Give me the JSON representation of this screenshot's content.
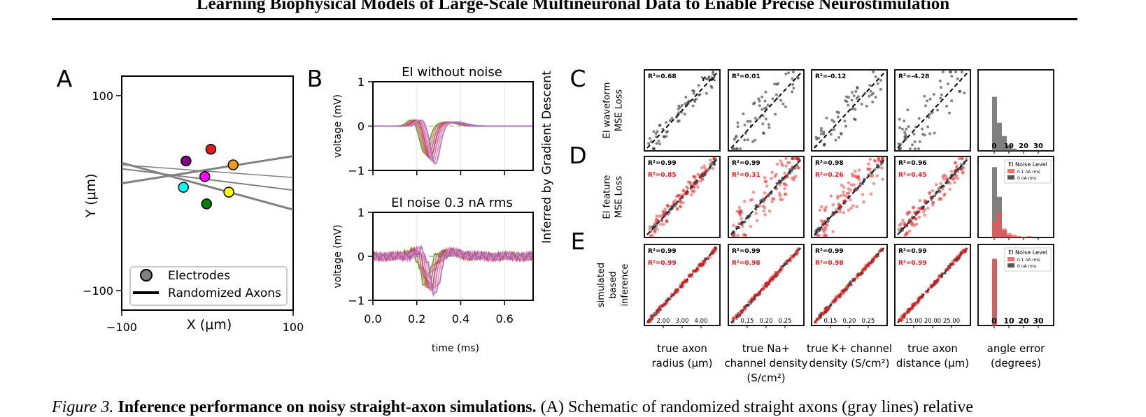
{
  "title": "Learning Biophysical Models of Large-Scale Multineuronal Data to Enable Precise Neurostimulation",
  "caption": {
    "label": "Figure 3.",
    "bold": "Inference performance on noisy straight-axon simulations.",
    "text": "(A) Schematic of randomized straight axons (gray lines) relative"
  },
  "panel_letters": [
    "A",
    "B",
    "C",
    "D",
    "E"
  ],
  "colors": {
    "data": "#333333",
    "noisy": "#e31a1c",
    "axon": "#808080"
  },
  "chart_data": [
    {
      "panel": "A",
      "type": "scatter",
      "xlabel": "X (μm)",
      "ylabel": "Y (μm)",
      "xlim": [
        -100,
        100
      ],
      "ylim": [
        -120,
        120
      ],
      "xticks": [
        "−100",
        "100"
      ],
      "yticks": [
        "100",
        "−100"
      ],
      "electrodes": [
        {
          "x": -25,
          "y": 33,
          "color": "#800080"
        },
        {
          "x": 4,
          "y": 45,
          "color": "#e31a1c"
        },
        {
          "x": 30,
          "y": 29,
          "color": "#f39c12"
        },
        {
          "x": -3,
          "y": 17,
          "color": "#ff00ff"
        },
        {
          "x": -28,
          "y": 6,
          "color": "#00ffff"
        },
        {
          "x": 25,
          "y": 1,
          "color": "#ffff00"
        },
        {
          "x": -1,
          "y": -11,
          "color": "#008000"
        }
      ],
      "axons": [
        {
          "y_left": 31,
          "y_right": -17,
          "width": 3
        },
        {
          "y_left": 29,
          "y_right": 16,
          "width": 1.5
        },
        {
          "y_left": 25,
          "y_right": 3,
          "width": 2
        },
        {
          "y_left": 10,
          "y_right": 38,
          "width": 3
        }
      ],
      "legend": [
        "Electrodes",
        "Randomized Axons"
      ]
    },
    {
      "panel": "B",
      "type": "line",
      "subtitles": [
        "EI without noise",
        "EI noise 0.3 nA rms"
      ],
      "ylabel": "voltage (mV)",
      "xlabel": "time (ms)",
      "side_label": "Inferred by Gradient Descent",
      "xticks": [
        "0.0",
        "0.2",
        "0.4",
        "0.6"
      ],
      "yticks": [
        "1",
        "0",
        "−1"
      ],
      "xlim": [
        0,
        0.73
      ],
      "ylim": [
        -1,
        1
      ]
    },
    {
      "panel": "C-E",
      "type": "scatter",
      "row_labels": [
        [
          "EI waveform",
          "MSE Loss"
        ],
        [
          "EI feature",
          "MSE Loss"
        ],
        [
          "simulated",
          "based",
          "inference"
        ]
      ],
      "column_labels": [
        [
          "true axon",
          "radius (μm)"
        ],
        [
          "true Na+",
          "channel density",
          "(S/cm²)"
        ],
        [
          "true K+ channel",
          "density (S/cm²)"
        ],
        [
          "true axon",
          "distance (μm)"
        ],
        [
          "angle error",
          "(degrees)"
        ]
      ],
      "yx_label": "Y=X",
      "r2": [
        [
          [
            "R²=0.68"
          ],
          [
            "R²=0.01"
          ],
          [
            "R²=-0.12"
          ],
          [
            "R²=-4.28"
          ]
        ],
        [
          [
            "R²=0.99",
            "R²=0.85"
          ],
          [
            "R²=0.99",
            "R²=0.31"
          ],
          [
            "R²=0.98",
            "R²=0.26"
          ],
          [
            "R²=0.96",
            "R²=0.45"
          ]
        ],
        [
          [
            "R²=0.99",
            "R²=0.99"
          ],
          [
            "R²=0.99",
            "R²=0.98"
          ],
          [
            "R²=0.99",
            "R²=0.98"
          ],
          [
            "R²=0.99",
            "R²=0.99"
          ]
        ]
      ],
      "bottom_ticks": [
        [
          "2.00",
          "3.00",
          "4.00"
        ],
        [
          "0.15",
          "0.20",
          "0.25"
        ],
        [
          "0.15",
          "0.20",
          "0.25"
        ],
        [
          "15.00",
          "20.00",
          "25.00"
        ]
      ],
      "hist_ticks": [
        "0",
        "10",
        "20",
        "30"
      ],
      "hist_legend": {
        "title": "EI Noise Level",
        "items": [
          {
            "label": "0.1 nA rms",
            "color": "#ff6b6b"
          },
          {
            "label": "0 nA rms",
            "color": "#555555"
          }
        ]
      },
      "histograms": {
        "C": {
          "gray": [
            0.73,
            0.38,
            0.2,
            0.08,
            0.03,
            0,
            0,
            0
          ]
        },
        "D": {
          "gray": [
            0.95,
            0.55,
            0.1,
            0.03,
            0,
            0,
            0,
            0
          ],
          "red": [
            0.22,
            0.35,
            0.12,
            0.06,
            0.04,
            0.02,
            0.01,
            0.02
          ]
        },
        "E": {
          "gray": [
            0.9,
            0,
            0,
            0,
            0,
            0,
            0,
            0
          ],
          "red": [
            0.9,
            0,
            0,
            0,
            0,
            0,
            0,
            0
          ]
        }
      }
    }
  ]
}
